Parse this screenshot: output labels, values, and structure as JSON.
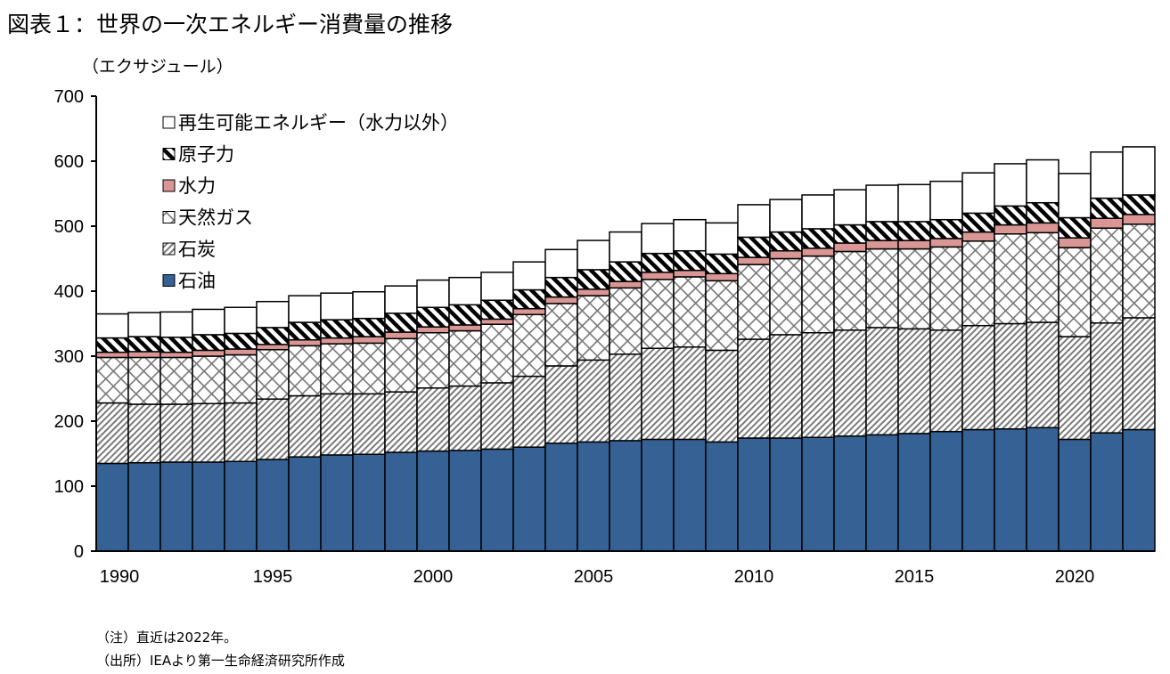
{
  "title": "図表１：世界の一次エネルギー消費量の推移",
  "notes": [
    "（注）直近は2022年。",
    "（出所）IEAより第一生命経済研究所作成"
  ],
  "chart_data": {
    "type": "bar",
    "stacked": true,
    "title": "図表１：世界の一次エネルギー消費量の推移",
    "ylabel": "（エクサジュール）",
    "xlabel": "",
    "ylim": [
      0,
      700
    ],
    "yticks": [
      0,
      100,
      200,
      300,
      400,
      500,
      600,
      700
    ],
    "xtick_labels": [
      "1990",
      "1995",
      "2000",
      "2005",
      "2010",
      "2015",
      "2020"
    ],
    "grid": false,
    "legend_position": "top-left",
    "categories": [
      1990,
      1991,
      1992,
      1993,
      1994,
      1995,
      1996,
      1997,
      1998,
      1999,
      2000,
      2001,
      2002,
      2003,
      2004,
      2005,
      2006,
      2007,
      2008,
      2009,
      2010,
      2011,
      2012,
      2013,
      2014,
      2015,
      2016,
      2017,
      2018,
      2019,
      2020,
      2021,
      2022
    ],
    "series": [
      {
        "name": "石油",
        "color": "#356194",
        "pattern": "solid",
        "values": [
          135,
          136,
          137,
          137,
          138,
          141,
          145,
          148,
          149,
          152,
          154,
          155,
          157,
          160,
          166,
          168,
          170,
          172,
          172,
          168,
          174,
          174,
          175,
          177,
          179,
          181,
          184,
          187,
          188,
          190,
          172,
          182,
          187
        ]
      },
      {
        "name": "石炭",
        "color": "#808080",
        "pattern": "diagonal-fine",
        "values": [
          93,
          90,
          89,
          90,
          90,
          93,
          94,
          94,
          93,
          93,
          97,
          99,
          102,
          109,
          119,
          126,
          133,
          140,
          142,
          141,
          152,
          159,
          161,
          163,
          165,
          161,
          156,
          160,
          162,
          162,
          158,
          169,
          172
        ]
      },
      {
        "name": "天然ガス",
        "color": "#808080",
        "pattern": "crosshatch",
        "values": [
          70,
          72,
          72,
          73,
          74,
          76,
          77,
          77,
          78,
          82,
          85,
          85,
          90,
          95,
          96,
          99,
          102,
          106,
          108,
          107,
          115,
          117,
          118,
          121,
          121,
          123,
          128,
          130,
          138,
          138,
          137,
          146,
          144
        ]
      },
      {
        "name": "水力",
        "color": "#d99694",
        "pattern": "solid",
        "values": [
          8,
          9,
          8,
          9,
          9,
          8,
          9,
          9,
          10,
          10,
          9,
          9,
          8,
          9,
          10,
          10,
          10,
          11,
          10,
          11,
          11,
          12,
          12,
          13,
          13,
          13,
          13,
          14,
          14,
          15,
          15,
          15,
          15
        ]
      },
      {
        "name": "原子力",
        "color": "#000000",
        "pattern": "diagonal-bold",
        "values": [
          22,
          23,
          23,
          24,
          24,
          26,
          27,
          28,
          28,
          29,
          30,
          31,
          29,
          29,
          30,
          30,
          30,
          29,
          30,
          30,
          31,
          29,
          30,
          28,
          29,
          29,
          29,
          29,
          29,
          31,
          31,
          31,
          30
        ]
      },
      {
        "name": "再生可能エネルギー（水力以外）",
        "color": "#ffffff",
        "pattern": "solid",
        "values": [
          37,
          37,
          39,
          39,
          40,
          40,
          41,
          41,
          41,
          42,
          42,
          42,
          43,
          43,
          43,
          45,
          46,
          46,
          48,
          48,
          50,
          50,
          52,
          54,
          56,
          57,
          59,
          62,
          65,
          66,
          68,
          71,
          74
        ]
      }
    ]
  }
}
